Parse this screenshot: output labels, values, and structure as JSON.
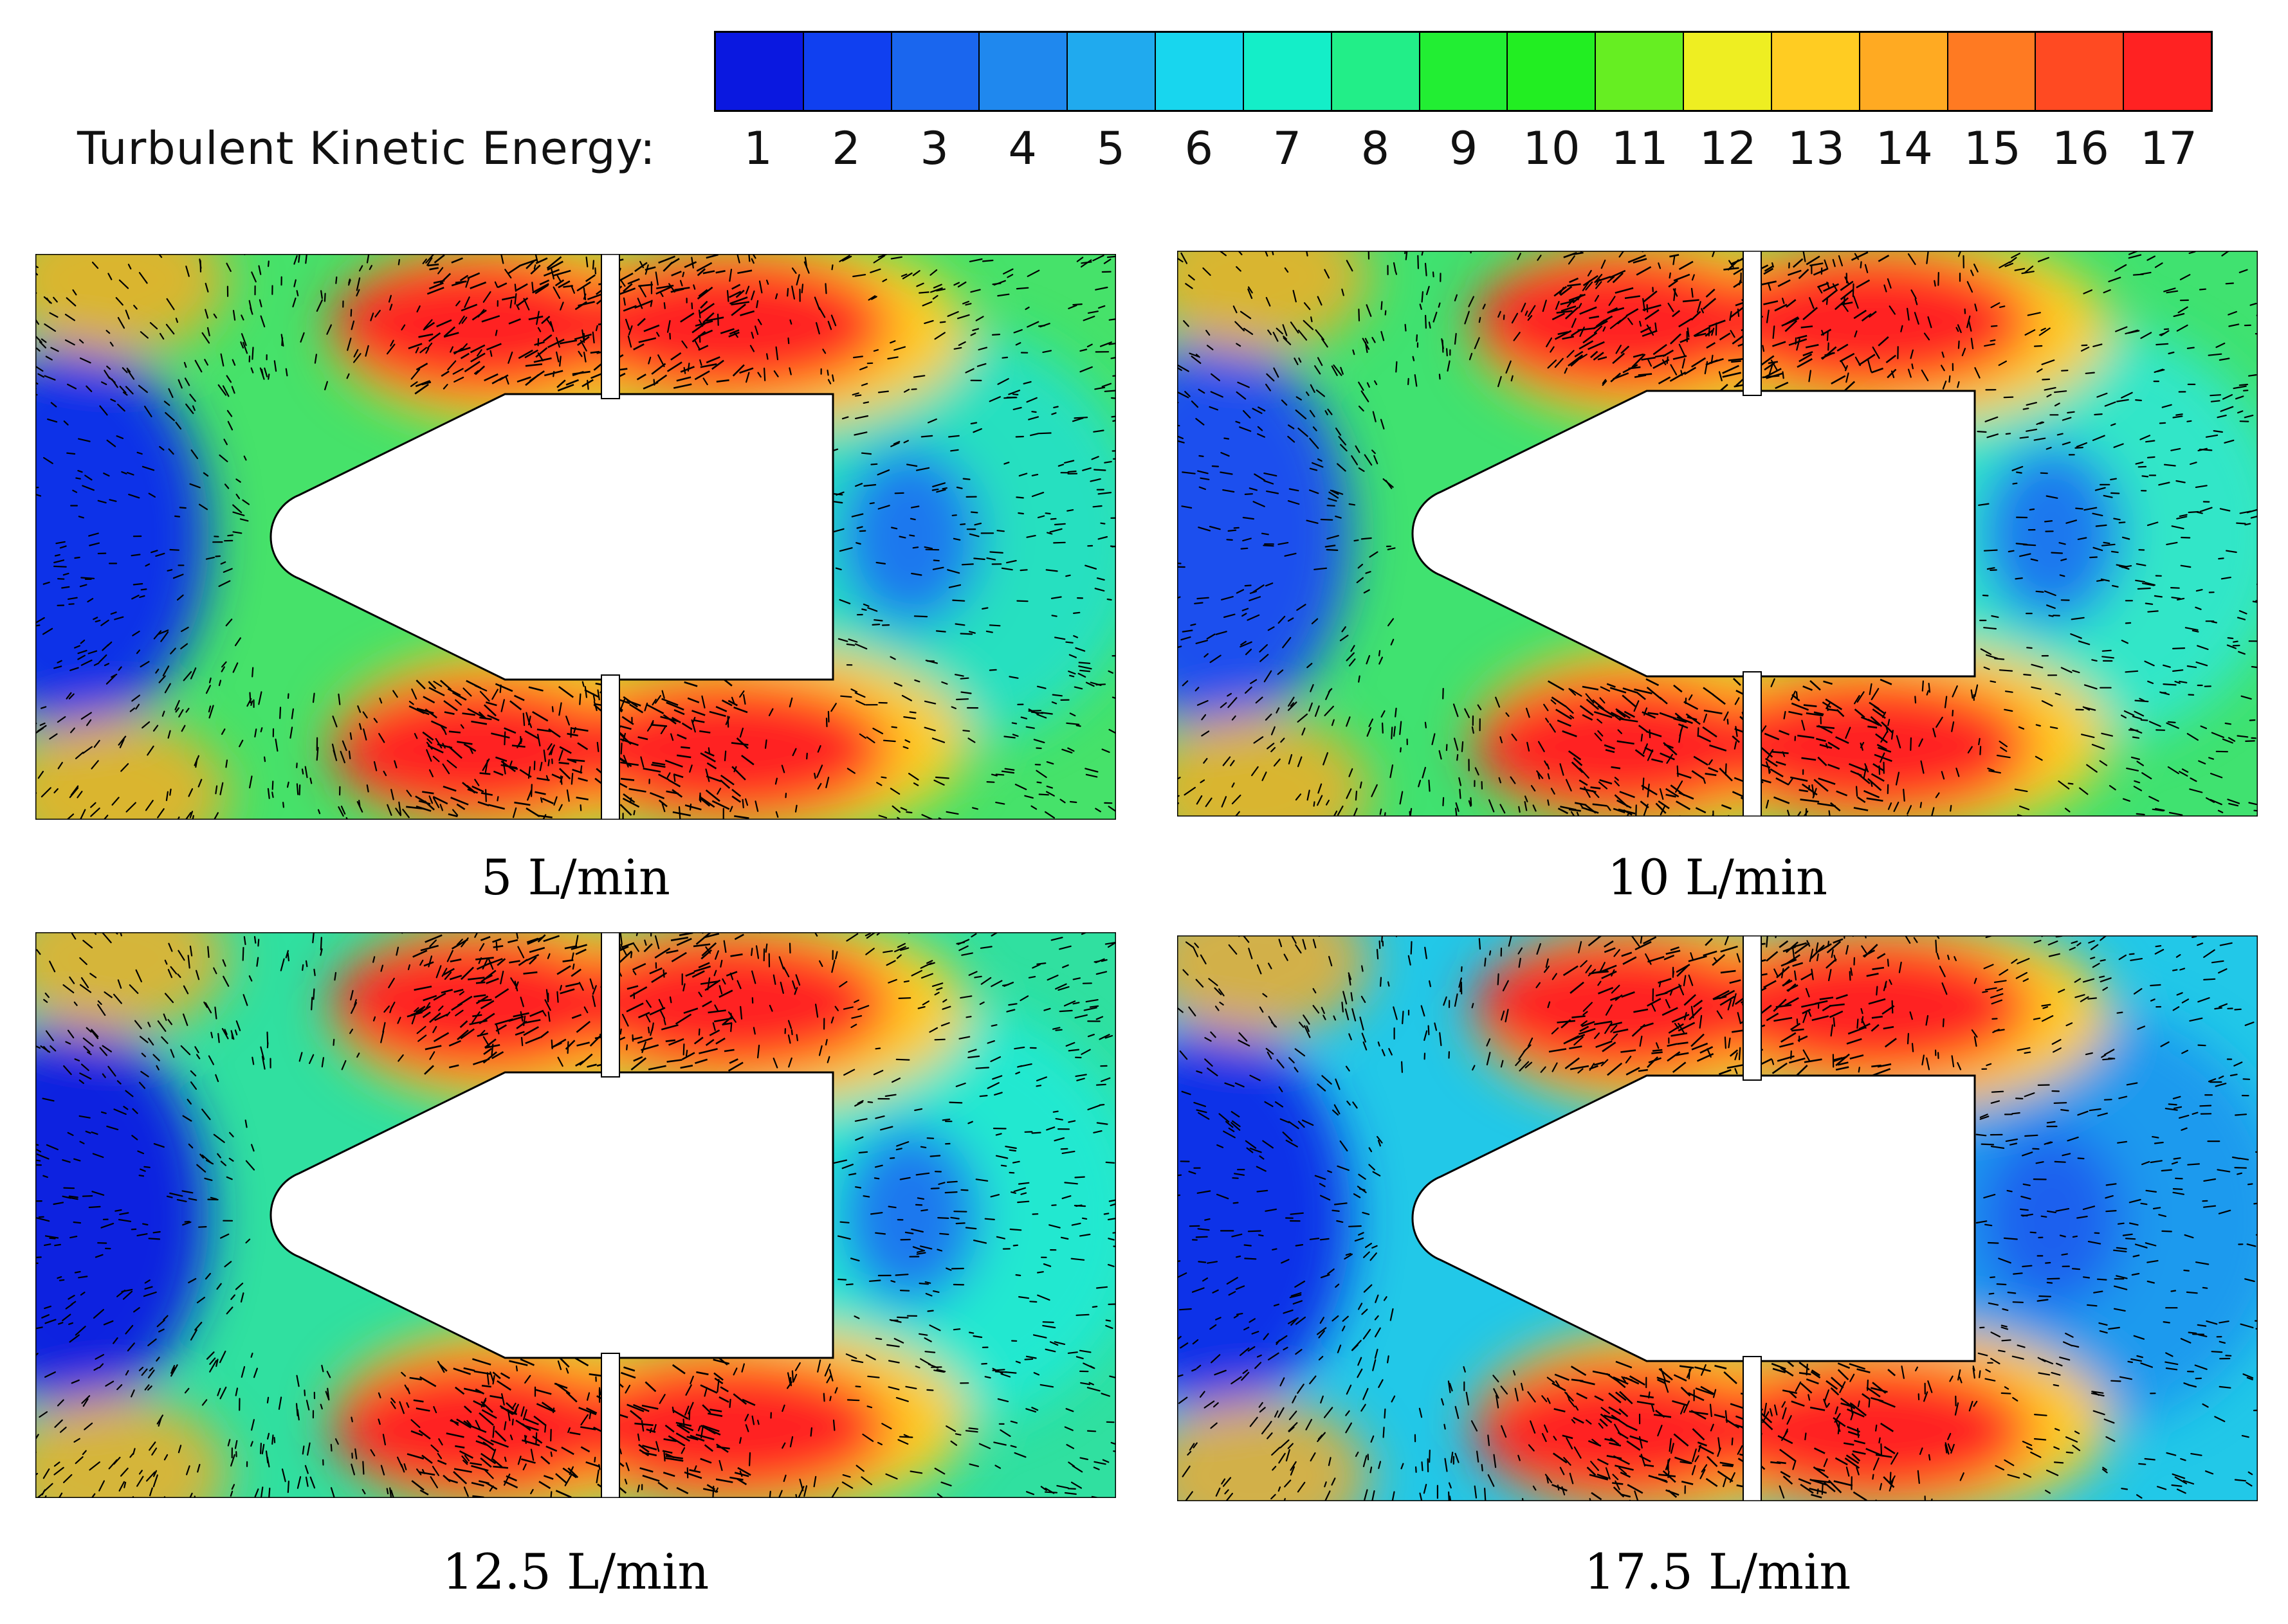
{
  "legend": {
    "title": "Turbulent Kinetic Energy:",
    "ticks": [
      "1",
      "2",
      "3",
      "4",
      "5",
      "6",
      "7",
      "8",
      "9",
      "10",
      "11",
      "12",
      "13",
      "14",
      "15",
      "16",
      "17"
    ],
    "colors": [
      "#0a18e0",
      "#1040f0",
      "#1a66ee",
      "#1f88ee",
      "#20aaee",
      "#18d6ee",
      "#14eec8",
      "#22ee88",
      "#22ee33",
      "#22ee22",
      "#66ee22",
      "#eeee22",
      "#ffcc22",
      "#ffaa22",
      "#ff7a22",
      "#ff4a22",
      "#ff2222"
    ]
  },
  "panels": [
    {
      "caption": "5 L/min",
      "bg": "#46e26a",
      "left_color": "#0a30e8",
      "right_color": "#1a78ee",
      "tail_color": "#28e0c0"
    },
    {
      "caption": "10 L/min",
      "bg": "#40e270",
      "left_color": "#1a50ee",
      "right_color": "#1a78ee",
      "tail_color": "#30e6c8"
    },
    {
      "caption": "12.5 L/min",
      "bg": "#30e0a0",
      "left_color": "#0a20e0",
      "right_color": "#1a78ee",
      "tail_color": "#22e8d0"
    },
    {
      "caption": "17.5 L/min",
      "bg": "#22c8e8",
      "left_color": "#0a30e8",
      "right_color": "#1a60ee",
      "tail_color": "#1a9aee"
    }
  ]
}
